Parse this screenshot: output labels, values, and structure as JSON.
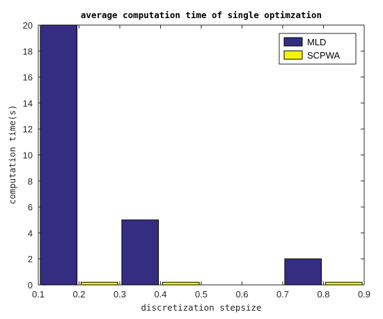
{
  "chart_data": {
    "type": "bar",
    "title": "average computation time of single optimzation",
    "xlabel": "discretization stepsize",
    "ylabel": "computation time(s)",
    "xlim": [
      0.1,
      0.9
    ],
    "ylim": [
      0,
      20
    ],
    "xticks": [
      "0.1",
      "0.2",
      "0.3",
      "0.4",
      "0.5",
      "0.6",
      "0.7",
      "0.8",
      "0.9"
    ],
    "yticks": [
      "0",
      "2",
      "4",
      "6",
      "8",
      "10",
      "12",
      "14",
      "16",
      "18",
      "20"
    ],
    "categories": [
      0.2,
      0.4,
      0.8
    ],
    "series": [
      {
        "name": "MLD",
        "values": [
          20,
          5,
          2
        ],
        "color": "#342d82"
      },
      {
        "name": "SCPWA",
        "values": [
          0.2,
          0.2,
          0.2
        ],
        "color": "#f5f50a"
      }
    ],
    "legend_position": "top-right",
    "grid": false
  }
}
